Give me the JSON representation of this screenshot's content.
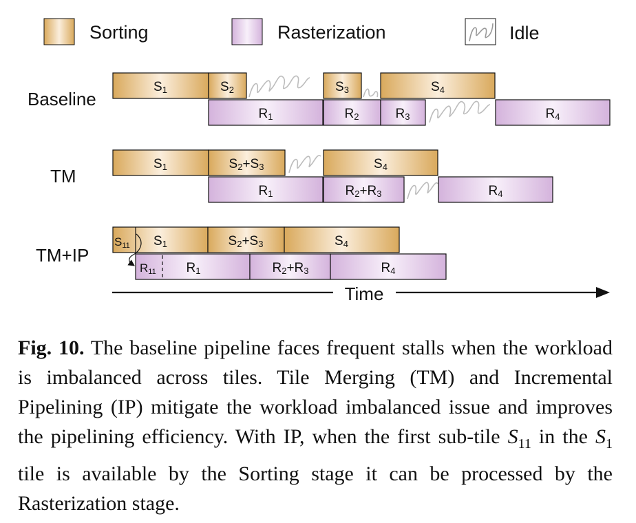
{
  "legend": {
    "sorting": "Sorting",
    "rasterization": "Rasterization",
    "idle": "Idle"
  },
  "colors": {
    "sorting_edge": "#d9a95c",
    "sorting_center": "#fbeedc",
    "raster_edge": "#d4b3dc",
    "raster_center": "#f8f0fa",
    "idle_line": "#bdbdbd",
    "outline": "#111111"
  },
  "rows": [
    {
      "label": "Baseline",
      "sorting": [
        {
          "label": "S",
          "sub": "1"
        },
        {
          "label": "S",
          "sub": "2"
        },
        {
          "label": "S",
          "sub": "3"
        },
        {
          "label": "S",
          "sub": "4"
        }
      ],
      "rasterization": [
        {
          "label": "R",
          "sub": "1"
        },
        {
          "label": "R",
          "sub": "2"
        },
        {
          "label": "R",
          "sub": "3"
        },
        {
          "label": "R",
          "sub": "4"
        }
      ]
    },
    {
      "label": "TM",
      "sorting": [
        {
          "label": "S",
          "sub": "1"
        },
        {
          "label": "S",
          "sub": "2",
          "label2": "+S",
          "sub2": "3"
        },
        {
          "label": "S",
          "sub": "4"
        }
      ],
      "rasterization": [
        {
          "label": "R",
          "sub": "1"
        },
        {
          "label": "R",
          "sub": "2",
          "label2": "+R",
          "sub2": "3"
        },
        {
          "label": "R",
          "sub": "4"
        }
      ]
    },
    {
      "label": "TM+IP",
      "sorting": [
        {
          "label": "S",
          "sub": "11"
        },
        {
          "label": "S",
          "sub": "1"
        },
        {
          "label": "S",
          "sub": "2",
          "label2": "+S",
          "sub2": "3"
        },
        {
          "label": "S",
          "sub": "4"
        }
      ],
      "rasterization": [
        {
          "label": "R",
          "sub": "11"
        },
        {
          "label": "R",
          "sub": "1"
        },
        {
          "label": "R",
          "sub": "2",
          "label2": "+R",
          "sub2": "3"
        },
        {
          "label": "R",
          "sub": "4"
        }
      ]
    }
  ],
  "time_label": "Time",
  "caption": {
    "fig_label": "Fig. 10.",
    "text_a": " The baseline pipeline faces frequent stalls when the workload is imbalanced across tiles. Tile Merging (TM) and Incremental Pipelining (IP) mitigate the workload imbalanced issue and improves the pipelining efficiency. With IP, when the first sub-tile ",
    "math1": "S",
    "math1_sub": "11",
    "text_b": " in the ",
    "math2": "S",
    "math2_sub": "1",
    "text_c": " tile is available by the Sorting stage it can be processed by the Rasterization stage."
  }
}
